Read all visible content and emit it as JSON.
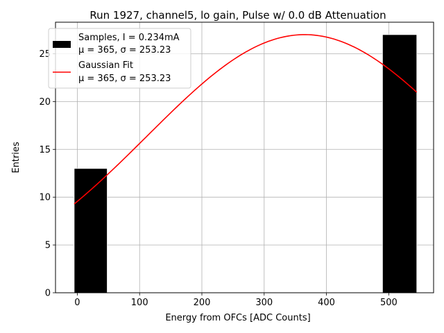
{
  "chart_data": {
    "type": "histogram",
    "title": "Run 1927, channel5, lo gain, Pulse w/ 0.0 dB Attenuation",
    "xlabel": "Energy from OFCs [ADC Counts]",
    "ylabel": "Entries",
    "xlim": [
      -35,
      572
    ],
    "ylim": [
      0,
      28.3
    ],
    "x_ticks": [
      0,
      100,
      200,
      300,
      400,
      500
    ],
    "y_ticks": [
      0,
      5,
      10,
      15,
      20,
      25
    ],
    "grid": true,
    "bars": [
      {
        "x_start": -5,
        "x_end": 48,
        "value": 13
      },
      {
        "x_start": 490,
        "x_end": 545,
        "value": 27
      }
    ],
    "fit": {
      "name": "Gaussian Fit",
      "amplitude": 27,
      "mu": 365,
      "sigma": 253.23,
      "x_range": [
        -5,
        545
      ],
      "color": "#ff0000"
    },
    "legend": {
      "position": "top-left",
      "entries": [
        {
          "kind": "bar",
          "color": "#000000",
          "line1": "Samples, I = 0.234mA",
          "line2": "μ = 365, σ = 253.23"
        },
        {
          "kind": "line",
          "color": "#ff0000",
          "line1": "Gaussian Fit",
          "line2": "μ = 365, σ = 253.23"
        }
      ]
    }
  }
}
